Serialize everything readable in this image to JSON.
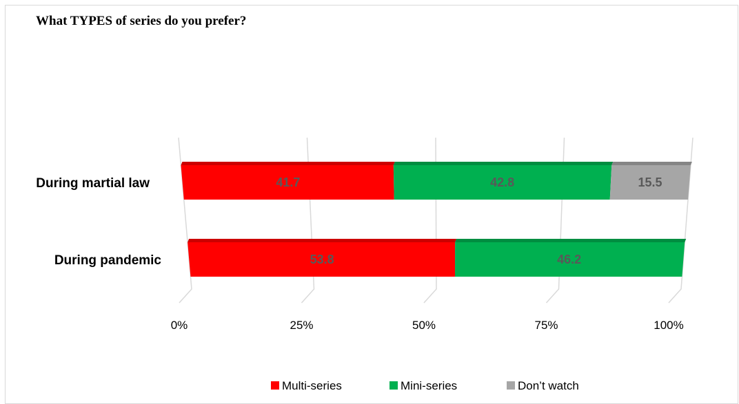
{
  "chart_data": {
    "type": "bar",
    "orientation": "horizontal",
    "stacked": "percent",
    "title": "What TYPES of series do you prefer?",
    "categories": [
      "During martial law",
      "During pandemic"
    ],
    "series": [
      {
        "name": "Multi-series",
        "values": [
          41.7,
          53.8
        ],
        "color": "#ff0000"
      },
      {
        "name": "Mini-series",
        "values": [
          42.8,
          46.2
        ],
        "color": "#00b050"
      },
      {
        "name": "Don’t watch",
        "values": [
          15.5,
          0
        ],
        "color": "#a6a6a6"
      }
    ],
    "x_ticks": [
      "0%",
      "25%",
      "50%",
      "75%",
      "100%"
    ],
    "xlim": [
      0,
      100
    ],
    "grid": true,
    "legend_position": "bottom"
  }
}
